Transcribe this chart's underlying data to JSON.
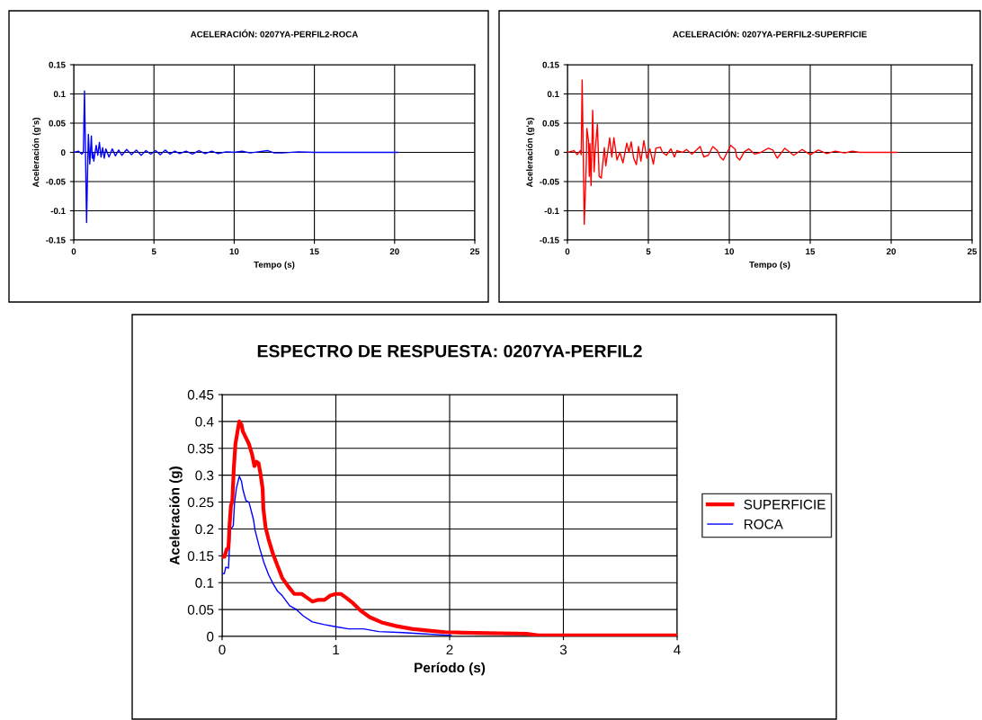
{
  "chart_data": [
    {
      "type": "line",
      "title": "ACELERACIÓN: 0207YA-PERFIL2-ROCA",
      "xlabel": "Tempo (s)",
      "ylabel": "Aceleración (g's)",
      "xlim": [
        0,
        25
      ],
      "xticks": [
        0,
        5,
        10,
        15,
        20,
        25
      ],
      "ylim": [
        -0.15,
        0.15
      ],
      "yticks": [
        -0.15,
        -0.1,
        -0.05,
        0,
        0.05,
        0.1,
        0.15
      ],
      "grid": true,
      "legend": false,
      "series": [
        {
          "color": "#0000ff",
          "x": [
            0,
            0.3,
            0.5,
            0.6,
            0.67,
            0.75,
            0.8,
            0.85,
            0.91,
            1.0,
            1.1,
            1.15,
            1.2,
            1.25,
            1.4,
            1.5,
            1.6,
            1.7,
            1.8,
            1.9,
            2.0,
            2.2,
            2.4,
            2.6,
            2.8,
            3.0,
            3.3,
            3.6,
            3.9,
            4.2,
            4.5,
            4.8,
            5.1,
            5.4,
            5.7,
            6.0,
            6.3,
            6.6,
            7.0,
            7.4,
            7.8,
            8.2,
            8.6,
            9.0,
            9.5,
            10,
            10.5,
            11,
            11.5,
            12.1,
            12.5,
            13,
            14,
            15,
            16,
            18,
            20.2
          ],
          "values": [
            0,
            0.002,
            -0.003,
            0,
            0.105,
            -0.03,
            -0.12,
            -0.05,
            0.031,
            -0.02,
            0.028,
            -0.01,
            0,
            -0.015,
            0.012,
            -0.005,
            0.017,
            -0.008,
            0.008,
            -0.01,
            0.006,
            -0.008,
            0.006,
            -0.006,
            0.004,
            -0.005,
            0.005,
            -0.004,
            0.004,
            -0.005,
            0.003,
            -0.003,
            0.003,
            -0.004,
            0.004,
            -0.003,
            0.002,
            -0.002,
            0.002,
            -0.003,
            0.003,
            -0.002,
            0.002,
            -0.002,
            0.001,
            0,
            0.002,
            -0.001,
            0.001,
            0.003,
            -0.001,
            -0.001,
            0.001,
            0,
            0,
            0,
            0
          ]
        }
      ]
    },
    {
      "type": "line",
      "title": "ACELERACIÓN: 0207YA-PERFIL2-SUPERFICIE",
      "xlabel": "Tempo (s)",
      "ylabel": "Aceleración (g's)",
      "xlim": [
        0,
        25
      ],
      "xticks": [
        0,
        5,
        10,
        15,
        20,
        25
      ],
      "ylim": [
        -0.15,
        0.15
      ],
      "yticks": [
        -0.15,
        -0.1,
        -0.05,
        0,
        0.05,
        0.1,
        0.15
      ],
      "grid": true,
      "legend": false,
      "series": [
        {
          "color": "#ff0000",
          "x": [
            0,
            0.4,
            0.6,
            0.8,
            0.85,
            0.91,
            1.04,
            1.17,
            1.2,
            1.3,
            1.35,
            1.39,
            1.46,
            1.56,
            1.65,
            1.72,
            1.85,
            1.96,
            2.09,
            2.28,
            2.37,
            2.61,
            2.74,
            2.87,
            3.06,
            3.24,
            3.43,
            3.67,
            3.8,
            3.94,
            4.09,
            4.26,
            4.39,
            4.54,
            4.72,
            4.91,
            5.09,
            5.31,
            5.46,
            5.74,
            5.87,
            6.11,
            6.39,
            6.61,
            6.76,
            7.13,
            7.35,
            7.69,
            8.2,
            8.43,
            8.7,
            8.98,
            9.26,
            9.44,
            9.63,
            9.81,
            10.09,
            10.37,
            10.46,
            10.65,
            10.93,
            11.2,
            11.57,
            11.94,
            12.41,
            12.69,
            12.96,
            13.43,
            13.98,
            14.5,
            15.0,
            15.5,
            16.02,
            16.54,
            17.13,
            17.59,
            18.06,
            20.35
          ],
          "values": [
            0,
            0.003,
            -0.004,
            0.003,
            -0.004,
            0.124,
            -0.123,
            -0.015,
            0.041,
            0.02,
            -0.041,
            0.015,
            -0.057,
            0.072,
            -0.033,
            0.005,
            0.048,
            -0.041,
            -0.044,
            0.008,
            -0.023,
            0.025,
            -0.008,
            0.025,
            -0.013,
            0,
            -0.018,
            0.016,
            0,
            0.018,
            -0.01,
            -0.021,
            0.01,
            -0.015,
            0.02,
            -0.01,
            0.006,
            -0.02,
            0.007,
            0.009,
            0,
            -0.005,
            0.006,
            -0.008,
            0.003,
            0,
            0.005,
            -0.003,
            0.01,
            -0.008,
            -0.005,
            0.01,
            0.003,
            -0.008,
            -0.013,
            -0.003,
            0.012,
            0.005,
            -0.008,
            -0.013,
            0.001,
            0.006,
            -0.003,
            0,
            0.007,
            0.004,
            -0.01,
            0.007,
            -0.005,
            0.005,
            -0.004,
            0.004,
            -0.002,
            0.002,
            -0.001,
            0.002,
            0,
            0
          ]
        }
      ]
    },
    {
      "type": "line",
      "title": "ESPECTRO DE RESPUESTA: 0207YA-PERFIL2",
      "xlabel": "Período (s)",
      "ylabel": "Aceleración (g)",
      "xlim": [
        0,
        4
      ],
      "xticks": [
        0,
        1,
        2,
        3,
        4
      ],
      "ylim": [
        0,
        0.45
      ],
      "yticks": [
        0,
        0.05,
        0.1,
        0.15,
        0.2,
        0.25,
        0.3,
        0.35,
        0.4,
        0.45
      ],
      "grid": true,
      "legend": "right",
      "series": [
        {
          "name": "SUPERFICIE",
          "color": "#ff0000",
          "x": [
            0,
            0.02,
            0.04,
            0.056,
            0.064,
            0.077,
            0.09,
            0.103,
            0.117,
            0.135,
            0.151,
            0.17,
            0.183,
            0.209,
            0.236,
            0.263,
            0.284,
            0.302,
            0.321,
            0.337,
            0.356,
            0.363,
            0.382,
            0.408,
            0.448,
            0.488,
            0.528,
            0.581,
            0.634,
            0.7,
            0.74,
            0.793,
            0.846,
            0.899,
            0.952,
            1.0,
            1.044,
            1.084,
            1.15,
            1.217,
            1.296,
            1.402,
            1.535,
            1.667,
            1.8,
            1.959,
            2.118,
            2.33,
            2.675,
            2.78,
            4
          ],
          "values": [
            0.148,
            0.148,
            0.162,
            0.165,
            0.203,
            0.242,
            0.253,
            0.314,
            0.358,
            0.381,
            0.4,
            0.394,
            0.381,
            0.37,
            0.358,
            0.339,
            0.317,
            0.325,
            0.322,
            0.303,
            0.275,
            0.237,
            0.203,
            0.181,
            0.153,
            0.131,
            0.109,
            0.093,
            0.079,
            0.079,
            0.073,
            0.065,
            0.068,
            0.068,
            0.076,
            0.079,
            0.079,
            0.073,
            0.062,
            0.048,
            0.036,
            0.026,
            0.019,
            0.014,
            0.011,
            0.008,
            0.007,
            0.006,
            0.005,
            0.002,
            0.002
          ]
        },
        {
          "name": "ROCA",
          "color": "#0000ff",
          "x": [
            0,
            0.02,
            0.032,
            0.056,
            0.072,
            0.098,
            0.109,
            0.125,
            0.151,
            0.17,
            0.183,
            0.209,
            0.236,
            0.276,
            0.289,
            0.329,
            0.368,
            0.408,
            0.448,
            0.488,
            0.528,
            0.594,
            0.647,
            0.714,
            0.793,
            0.899,
            1.0,
            1.111,
            1.243,
            1.376,
            1.588,
            1.747,
            2.012
          ],
          "values": [
            0.117,
            0.117,
            0.129,
            0.127,
            0.198,
            0.206,
            0.248,
            0.275,
            0.298,
            0.289,
            0.273,
            0.253,
            0.25,
            0.217,
            0.198,
            0.165,
            0.137,
            0.115,
            0.098,
            0.084,
            0.076,
            0.057,
            0.051,
            0.038,
            0.027,
            0.022,
            0.018,
            0.014,
            0.014,
            0.009,
            0.007,
            0.005,
            0.002
          ]
        }
      ]
    }
  ]
}
